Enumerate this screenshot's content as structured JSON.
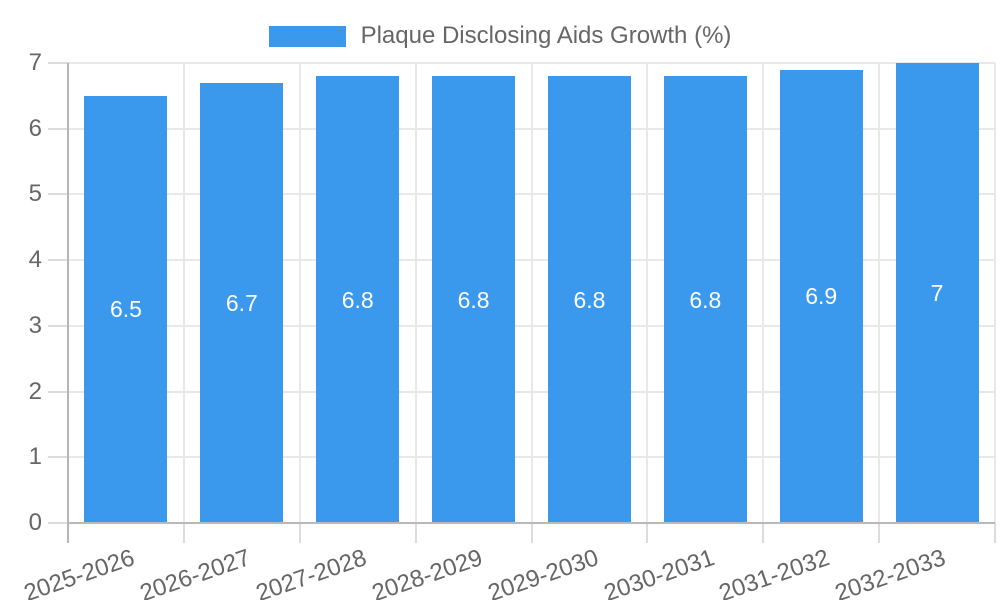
{
  "legend": {
    "label": "Plaque Disclosing Aids Growth (%)"
  },
  "chart_data": {
    "type": "bar",
    "title": "Plaque Disclosing Aids Growth (%)",
    "categories": [
      "2025-2026",
      "2026-2027",
      "2027-2028",
      "2028-2029",
      "2029-2030",
      "2030-2031",
      "2031-2032",
      "2032-2033"
    ],
    "values": [
      6.5,
      6.7,
      6.8,
      6.8,
      6.8,
      6.8,
      6.9,
      7
    ],
    "bar_value_labels": [
      "6.5",
      "6.7",
      "6.8",
      "6.8",
      "6.8",
      "6.8",
      "6.9",
      "7"
    ],
    "xlabel": "",
    "ylabel": "",
    "ylim": [
      0,
      7
    ],
    "yticks": [
      0,
      1,
      2,
      3,
      4,
      5,
      6,
      7
    ],
    "grid": true,
    "legend_position": "top",
    "colors": {
      "bar": "#3B99ED",
      "bar_value_label": "#FFFFFF",
      "tick_label": "#666666",
      "legend_label": "#666666",
      "gridline": "#E8E8E8",
      "zero_line": "#B9B9B9",
      "axis_line": "#B5B5B5",
      "tick_mark": "#DCDCDC"
    }
  }
}
